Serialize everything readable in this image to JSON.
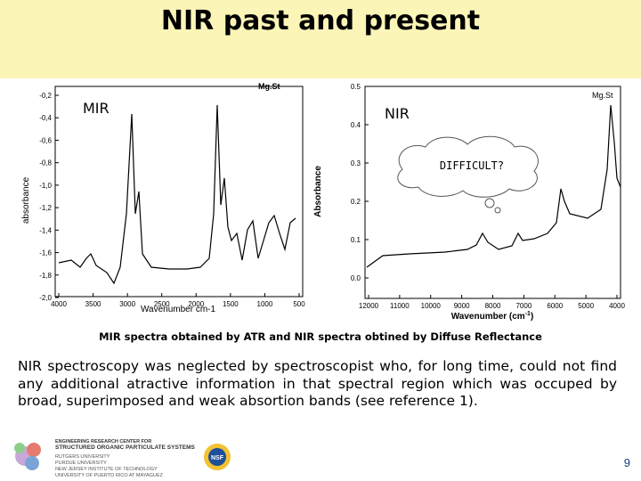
{
  "header": {
    "title": "NIR past and present"
  },
  "mir_plot": {
    "label": "MIR",
    "title": "Mg.St",
    "y_label": "absorbance",
    "x_label": "Wavenumber cm-1",
    "yticks": [
      "-0,2",
      "-0,4",
      "-0,6",
      "-0,8",
      "-1,0",
      "-1,2",
      "-1,4",
      "-1,6",
      "-1,8",
      "-2,0"
    ],
    "xticks": [
      "4000",
      "3500",
      "3000",
      "2500",
      "2000",
      "1500",
      "1000",
      "500"
    ]
  },
  "nir_plot": {
    "label": "NIR",
    "title": "Mg.St",
    "y_label": "Absorbance",
    "x_label": "Wavenumber (cm",
    "x_label_sup": "-1",
    "x_label_end": ")",
    "yticks": [
      "0.5",
      "0.4",
      "0.3",
      "0.2",
      "0.1",
      "0.0"
    ],
    "xticks": [
      "12000",
      "11000",
      "10000",
      "9000",
      "8000",
      "7000",
      "6000",
      "5000",
      "4000"
    ],
    "callout": "DIFFICULT?"
  },
  "caption": "MIR spectra obtained by ATR and NIR spectra obtined by Diffuse Reflectance",
  "body": "NIR spectroscopy was neglected by spectroscopist who, for long time, could not find any additional atractive information in that spectral region which was occuped by broad, superimposed and weak absortion bands (see reference 1).",
  "footer": {
    "logo_lines": [
      "ENGINEERING RESEARCH CENTER FOR",
      "STRUCTURED ORGANIC PARTICULATE SYSTEMS",
      "RUTGERS UNIVERSITY",
      "PURDUE UNIVERSITY",
      "NEW JERSEY INSTITUTE OF TECHNOLOGY",
      "UNIVERSITY OF PUERTO RICO AT MAYAGUEZ"
    ],
    "nsf": "NSF",
    "page": "9"
  }
}
